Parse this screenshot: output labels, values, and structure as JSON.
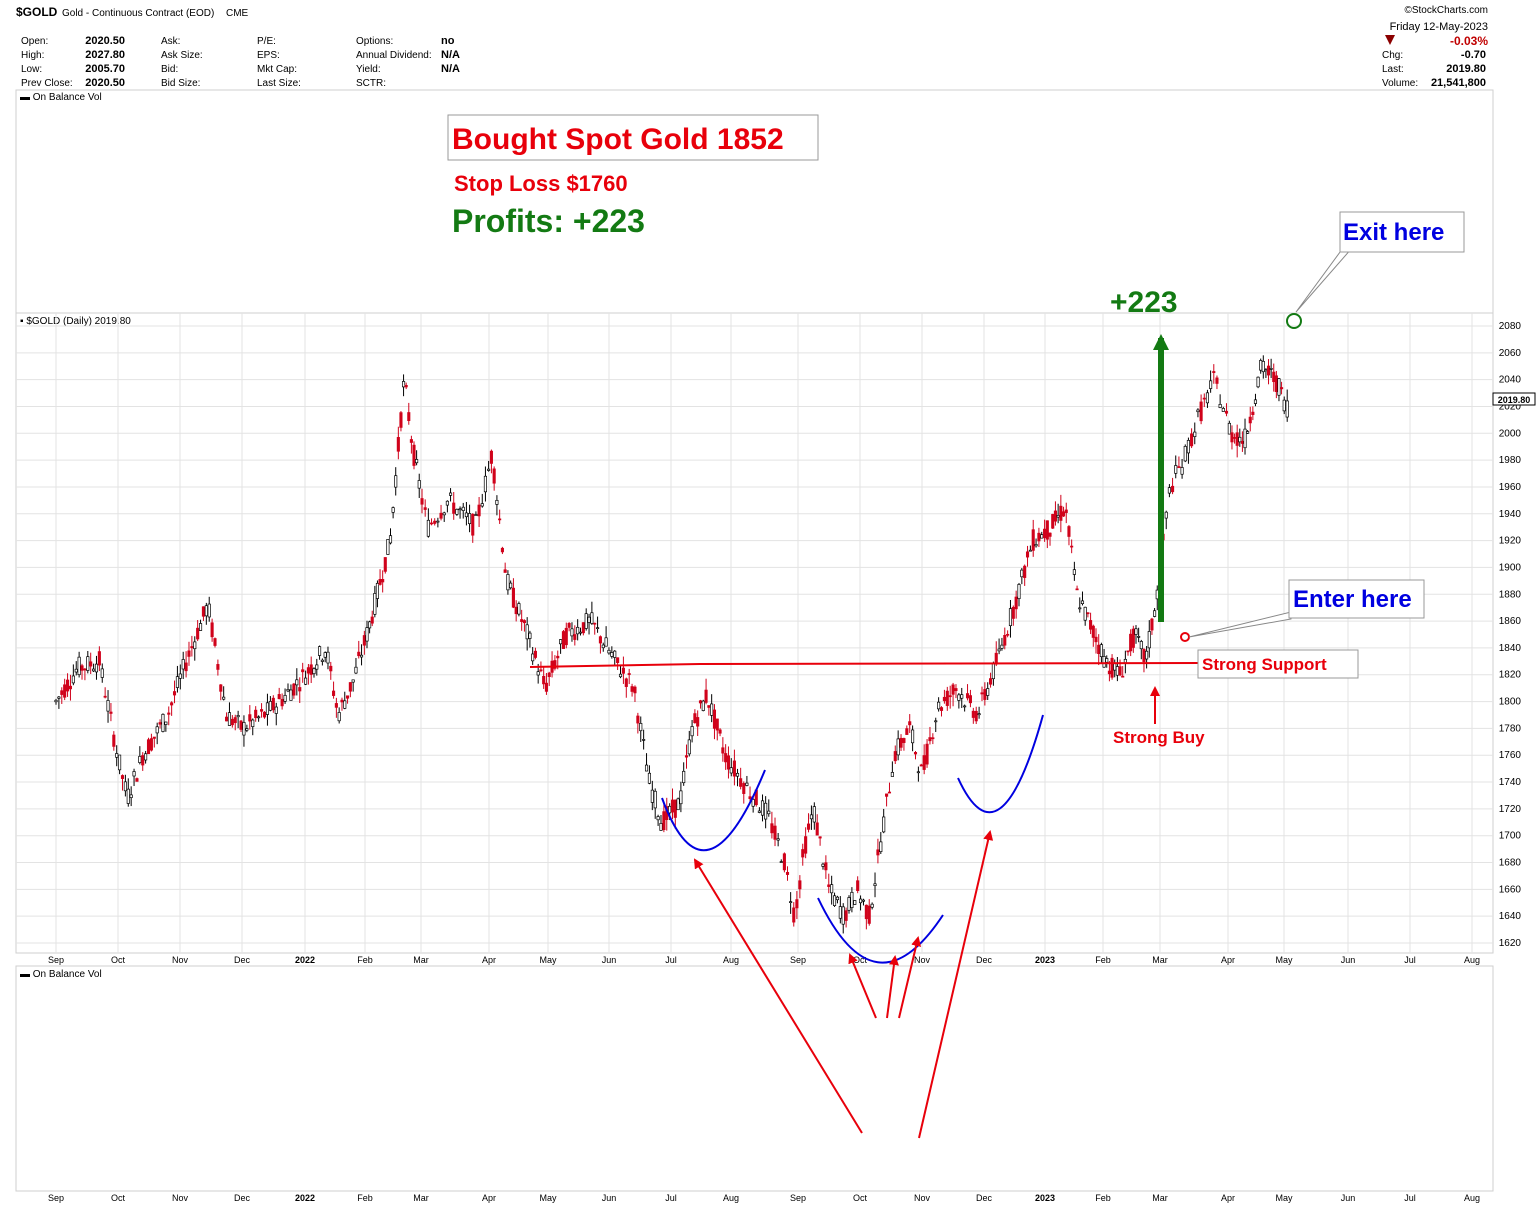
{
  "header": {
    "symbol": "$GOLD",
    "description": "Gold - Continuous Contract (EOD)",
    "exchange": "CME",
    "watermark": "©StockCharts.com",
    "date": "Friday  12-May-2023",
    "change_pct": "-0.03%",
    "fields_col1": [
      {
        "label": "Open:",
        "value": "2020.50"
      },
      {
        "label": "High:",
        "value": "2027.80"
      },
      {
        "label": "Low:",
        "value": "2005.70"
      },
      {
        "label": "Prev Close:",
        "value": "2020.50"
      }
    ],
    "fields_col2": [
      "Ask:",
      "Ask Size:",
      "Bid:",
      "Bid Size:"
    ],
    "fields_col3": [
      "P/E:",
      "EPS:",
      "Mkt Cap:",
      "Last Size:"
    ],
    "fields_col4": [
      {
        "label": "Options:",
        "value": "no"
      },
      {
        "label": "Annual Dividend:",
        "value": "N/A"
      },
      {
        "label": "Yield:",
        "value": "N/A"
      },
      {
        "label": "SCTR:",
        "value": ""
      }
    ],
    "fields_right": [
      {
        "label": "Chg:",
        "value": "-0.70"
      },
      {
        "label": "Last:",
        "value": "2019.80"
      },
      {
        "label": "Volume:",
        "value": "21,541,800"
      }
    ]
  },
  "panels": {
    "top_label": "On Balance Vol",
    "main_label": "$GOLD (Daily) 2019.80",
    "bottom_label": "On Balance Vol",
    "last_price_tag": "2019.80"
  },
  "annotations": {
    "bought": "Bought Spot Gold 1852",
    "stop_loss": "Stop Loss $1760",
    "profits": "Profits: +223",
    "gain": "+223",
    "exit": "Exit here",
    "enter": "Enter here",
    "support": "Strong Support",
    "buy": "Strong Buy"
  },
  "colors": {
    "up": "#000000",
    "down": "#d0021b",
    "red": "#e8000b",
    "green": "#137a13",
    "blue": "#0000e0",
    "grid": "#e3e3e3"
  },
  "chart_data": {
    "type": "candlestick",
    "title": "$GOLD (Daily) 2019.80",
    "ylim": [
      1610,
      2090
    ],
    "yticks": [
      1620,
      1640,
      1660,
      1680,
      1700,
      1720,
      1740,
      1760,
      1780,
      1800,
      1820,
      1840,
      1860,
      1880,
      1900,
      1920,
      1940,
      1960,
      1980,
      2000,
      2020,
      2040,
      2060,
      2080
    ],
    "x_months": [
      "Sep",
      "Oct",
      "Nov",
      "Dec",
      "2022",
      "Feb",
      "Mar",
      "Apr",
      "May",
      "Jun",
      "Jul",
      "Aug",
      "Sep",
      "Oct",
      "Nov",
      "Dec",
      "2023",
      "Feb",
      "Mar",
      "Apr",
      "May",
      "Jun",
      "Jul",
      "Aug"
    ],
    "support_level": 1815,
    "entry_price": 1852,
    "exit_price": 2075,
    "profit": 223,
    "price_path": [
      {
        "m": 0.0,
        "p": 1800
      },
      {
        "m": 0.35,
        "p": 1825
      },
      {
        "m": 0.7,
        "p": 1830
      },
      {
        "m": 1.0,
        "p": 1758
      },
      {
        "m": 1.15,
        "p": 1728
      },
      {
        "m": 1.4,
        "p": 1760
      },
      {
        "m": 1.8,
        "p": 1790
      },
      {
        "m": 2.1,
        "p": 1830
      },
      {
        "m": 2.45,
        "p": 1872
      },
      {
        "m": 2.75,
        "p": 1790
      },
      {
        "m": 3.0,
        "p": 1780
      },
      {
        "m": 3.35,
        "p": 1790
      },
      {
        "m": 3.7,
        "p": 1805
      },
      {
        "m": 4.0,
        "p": 1820
      },
      {
        "m": 4.35,
        "p": 1840
      },
      {
        "m": 4.55,
        "p": 1790
      },
      {
        "m": 4.8,
        "p": 1815
      },
      {
        "m": 5.1,
        "p": 1860
      },
      {
        "m": 5.45,
        "p": 1920
      },
      {
        "m": 5.7,
        "p": 2040
      },
      {
        "m": 5.85,
        "p": 1990
      },
      {
        "m": 6.1,
        "p": 1930
      },
      {
        "m": 6.4,
        "p": 1950
      },
      {
        "m": 6.8,
        "p": 1930
      },
      {
        "m": 7.05,
        "p": 1985
      },
      {
        "m": 7.3,
        "p": 1890
      },
      {
        "m": 7.65,
        "p": 1850
      },
      {
        "m": 7.95,
        "p": 1810
      },
      {
        "m": 8.3,
        "p": 1850
      },
      {
        "m": 8.7,
        "p": 1860
      },
      {
        "m": 9.1,
        "p": 1830
      },
      {
        "m": 9.4,
        "p": 1810
      },
      {
        "m": 9.65,
        "p": 1740
      },
      {
        "m": 9.85,
        "p": 1710
      },
      {
        "m": 10.15,
        "p": 1725
      },
      {
        "m": 10.35,
        "p": 1780
      },
      {
        "m": 10.6,
        "p": 1805
      },
      {
        "m": 10.9,
        "p": 1760
      },
      {
        "m": 11.25,
        "p": 1735
      },
      {
        "m": 11.55,
        "p": 1715
      },
      {
        "m": 11.8,
        "p": 1680
      },
      {
        "m": 11.95,
        "p": 1640
      },
      {
        "m": 12.1,
        "p": 1690
      },
      {
        "m": 12.25,
        "p": 1720
      },
      {
        "m": 12.5,
        "p": 1660
      },
      {
        "m": 12.75,
        "p": 1640
      },
      {
        "m": 12.95,
        "p": 1660
      },
      {
        "m": 13.15,
        "p": 1640
      },
      {
        "m": 13.35,
        "p": 1700
      },
      {
        "m": 13.55,
        "p": 1760
      },
      {
        "m": 13.8,
        "p": 1780
      },
      {
        "m": 14.0,
        "p": 1745
      },
      {
        "m": 14.25,
        "p": 1795
      },
      {
        "m": 14.55,
        "p": 1810
      },
      {
        "m": 14.9,
        "p": 1790
      },
      {
        "m": 15.25,
        "p": 1835
      },
      {
        "m": 15.55,
        "p": 1880
      },
      {
        "m": 15.8,
        "p": 1920
      },
      {
        "m": 16.1,
        "p": 1930
      },
      {
        "m": 16.35,
        "p": 1945
      },
      {
        "m": 16.55,
        "p": 1880
      },
      {
        "m": 16.8,
        "p": 1855
      },
      {
        "m": 17.05,
        "p": 1830
      },
      {
        "m": 17.3,
        "p": 1820
      },
      {
        "m": 17.55,
        "p": 1850
      },
      {
        "m": 17.75,
        "p": 1830
      },
      {
        "m": 17.95,
        "p": 1880
      },
      {
        "m": 18.15,
        "p": 1960
      },
      {
        "m": 18.35,
        "p": 1980
      },
      {
        "m": 18.55,
        "p": 2010
      },
      {
        "m": 18.8,
        "p": 2040
      },
      {
        "m": 19.05,
        "p": 2000
      },
      {
        "m": 19.3,
        "p": 1995
      },
      {
        "m": 19.6,
        "p": 2050
      },
      {
        "m": 19.85,
        "p": 2040
      },
      {
        "m": 20.05,
        "p": 2020
      }
    ]
  }
}
